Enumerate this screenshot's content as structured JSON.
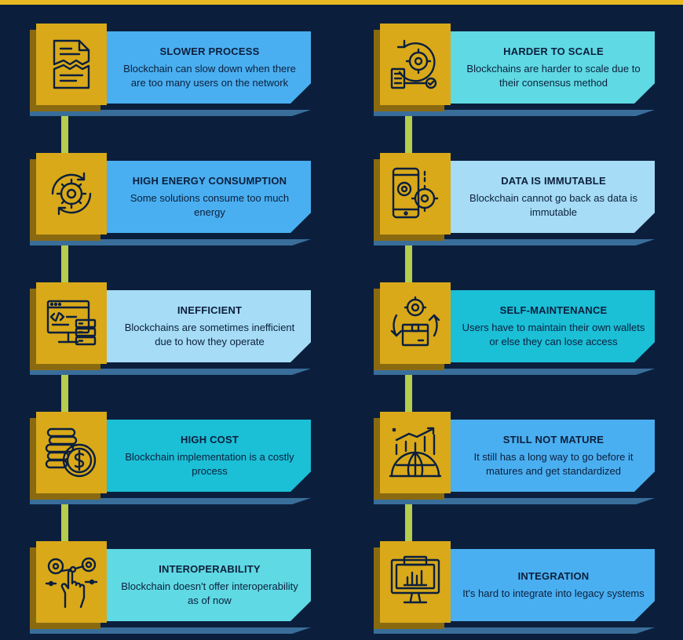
{
  "colors": {
    "background": "#0b1f3d",
    "accent_bar": "#e8b923",
    "icon_box": "#d9a91a",
    "connector": "#b6cc4e",
    "text": "#0b1f3d"
  },
  "left": [
    {
      "title": "SLOWER PROCESS",
      "desc": "Blockchain can slow down when there are too many users on the network",
      "icon": "document-icon",
      "color": "#4aaff0"
    },
    {
      "title": "HIGH ENERGY CONSUMPTION",
      "desc": "Some solutions consume too much energy",
      "icon": "gear-cycle-icon",
      "color": "#4aaff0"
    },
    {
      "title": "INEFFICIENT",
      "desc": "Blockchains are sometimes inefficient due to how they operate",
      "icon": "code-server-icon",
      "color": "#a6dcf5"
    },
    {
      "title": "HIGH COST",
      "desc": "Blockchain implementation is a costly process",
      "icon": "coins-dollar-icon",
      "color": "#1bbfd6"
    },
    {
      "title": "INTEROPERABILITY",
      "desc": "Blockchain doesn't offer interoperability as of now",
      "icon": "gears-hand-icon",
      "color": "#5fd9e3"
    }
  ],
  "right": [
    {
      "title": "HARDER TO SCALE",
      "desc": "Blockchains are harder to scale due to their consensus method",
      "icon": "scale-gear-icon",
      "color": "#5fd9e3"
    },
    {
      "title": "DATA IS IMMUTABLE",
      "desc": "Blockchain cannot go back as data is immutable",
      "icon": "phone-gears-icon",
      "color": "#a6dcf5"
    },
    {
      "title": "SELF-MAINTENANCE",
      "desc": "Users have to maintain their own wallets or else they can lose access",
      "icon": "box-gear-icon",
      "color": "#1bbfd6"
    },
    {
      "title": "STILL NOT MATURE",
      "desc": "It still has a long way to go before it matures and get standardized",
      "icon": "globe-growth-icon",
      "color": "#4aaff0"
    },
    {
      "title": "INTEGRATION",
      "desc": "It's hard to integrate into legacy systems",
      "icon": "monitor-chart-icon",
      "color": "#4aaff0"
    }
  ]
}
